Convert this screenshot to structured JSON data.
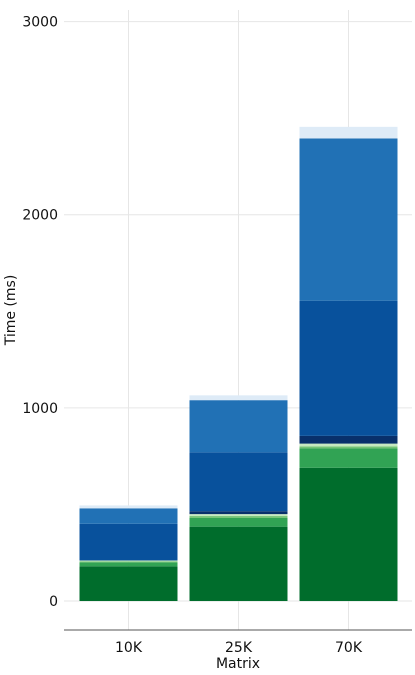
{
  "chart_data": {
    "type": "bar",
    "stacked": true,
    "categories": [
      "10K",
      "25K",
      "70K"
    ],
    "xlabel": "Matrix",
    "ylabel": "Time (ms)",
    "ylim": [
      -150,
      3060
    ],
    "yticks": [
      0,
      1000,
      2000,
      3000
    ],
    "grid": true,
    "series": [
      {
        "color": "#006d2c",
        "values": [
          180,
          385,
          690
        ]
      },
      {
        "color": "#31a354",
        "values": [
          20,
          45,
          100
        ]
      },
      {
        "color": "#74c476",
        "values": [
          5,
          10,
          10
        ]
      },
      {
        "color": "#c7e9c0",
        "values": [
          5,
          10,
          15
        ]
      },
      {
        "color": "#08306b",
        "values": [
          0,
          15,
          40
        ]
      },
      {
        "color": "#08519c",
        "values": [
          190,
          305,
          700
        ]
      },
      {
        "color": "#2171b5",
        "values": [
          80,
          270,
          840
        ]
      },
      {
        "color": "#deebf7",
        "values": [
          15,
          25,
          60
        ]
      }
    ]
  }
}
